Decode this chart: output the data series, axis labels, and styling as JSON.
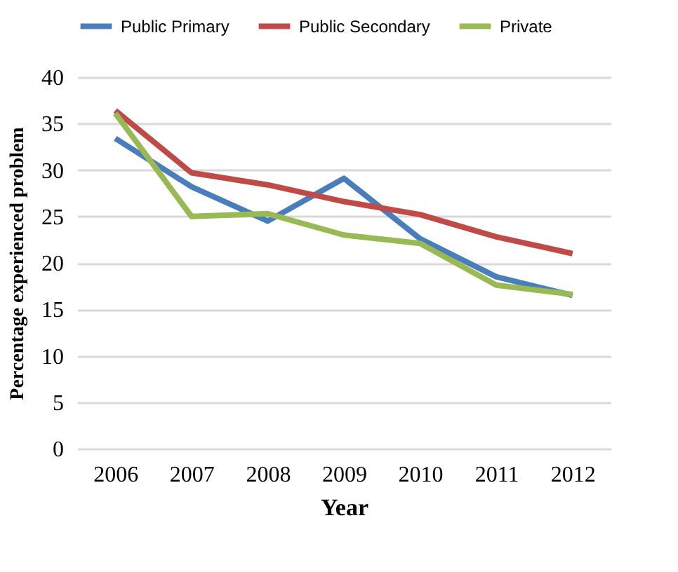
{
  "chart_data": {
    "type": "line",
    "xlabel": "Year",
    "ylabel": "Percentage experienced problem",
    "categories": [
      "2006",
      "2007",
      "2008",
      "2009",
      "2010",
      "2011",
      "2012"
    ],
    "series": [
      {
        "name": "Public Primary",
        "color": "#4a7ebb",
        "values": [
          33.4,
          28.2,
          24.5,
          29.1,
          22.6,
          18.5,
          16.5
        ]
      },
      {
        "name": "Public Secondary",
        "color": "#be4b48",
        "values": [
          36.4,
          29.7,
          28.4,
          26.6,
          25.2,
          22.8,
          21.0
        ]
      },
      {
        "name": "Private",
        "color": "#98b954",
        "values": [
          36.1,
          25.0,
          25.3,
          23.0,
          22.1,
          17.6,
          16.6
        ]
      }
    ],
    "ylim": [
      0,
      40
    ],
    "yticks": [
      0,
      5,
      10,
      15,
      20,
      25,
      30,
      35,
      40
    ],
    "grid": "y",
    "legend": "top",
    "marker": "none",
    "line_style": "solid"
  }
}
